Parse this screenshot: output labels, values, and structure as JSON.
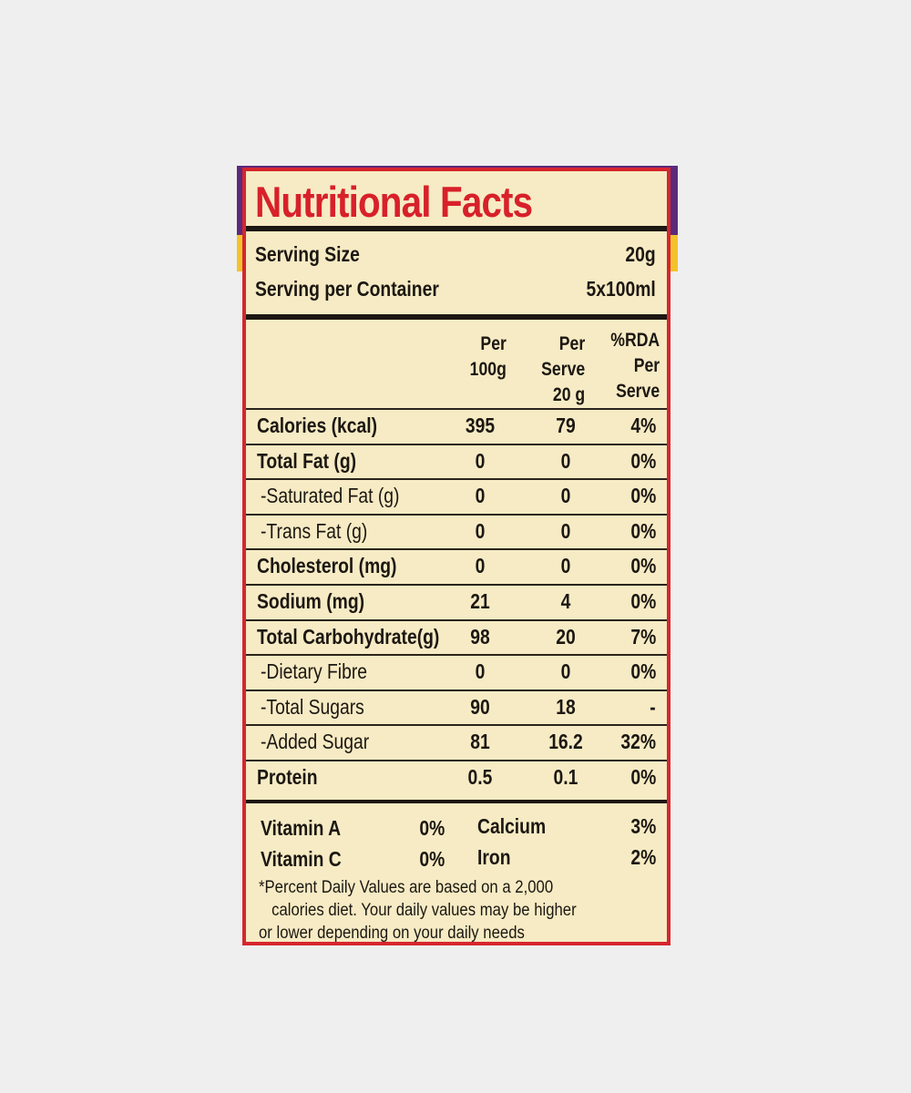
{
  "title": "Nutritional Facts",
  "serving": [
    {
      "label": "Serving Size",
      "value": "20g"
    },
    {
      "label": "Serving per Container",
      "value": "5x100ml"
    }
  ],
  "columns": [
    [
      "Per",
      "100g"
    ],
    [
      "Per",
      "Serve",
      "20 g"
    ],
    [
      "%RDA",
      "Per",
      "Serve"
    ]
  ],
  "rows": [
    {
      "name": "Calories (kcal)",
      "bold": true,
      "per100": "395",
      "perServe": "79",
      "rda": "4%"
    },
    {
      "name": "Total Fat (g)",
      "bold": true,
      "per100": "0",
      "perServe": "0",
      "rda": "0%"
    },
    {
      "name": "-Saturated Fat (g)",
      "bold": false,
      "per100": "0",
      "perServe": "0",
      "rda": "0%"
    },
    {
      "name": "-Trans Fat (g)",
      "bold": false,
      "per100": "0",
      "perServe": "0",
      "rda": "0%"
    },
    {
      "name": "Cholesterol (mg)",
      "bold": true,
      "per100": "0",
      "perServe": "0",
      "rda": "0%"
    },
    {
      "name": "Sodium (mg)",
      "bold": true,
      "per100": "21",
      "perServe": "4",
      "rda": "0%"
    },
    {
      "name": "Total Carbohydrate(g)",
      "bold": true,
      "per100": "98",
      "perServe": "20",
      "rda": "7%"
    },
    {
      "name": "-Dietary Fibre",
      "bold": false,
      "per100": "0",
      "perServe": "0",
      "rda": "0%"
    },
    {
      "name": "-Total Sugars",
      "bold": false,
      "per100": "90",
      "perServe": "18",
      "rda": "-"
    },
    {
      "name": "-Added Sugar",
      "bold": false,
      "per100": "81",
      "perServe": "16.2",
      "rda": "32%"
    },
    {
      "name": "Protein",
      "bold": true,
      "per100": "0.5",
      "perServe": "0.1",
      "rda": "0%"
    }
  ],
  "vitamins": [
    {
      "name": "Vitamin A",
      "value": "0%"
    },
    {
      "name": "Calcium",
      "value": "3%"
    },
    {
      "name": "Vitamin C",
      "value": "0%"
    },
    {
      "name": "Iron",
      "value": "2%"
    }
  ],
  "footnote": [
    "*Percent Daily Values are based on a 2,000",
    "calories diet. Your daily values may be higher",
    "or lower depending on your daily needs"
  ]
}
